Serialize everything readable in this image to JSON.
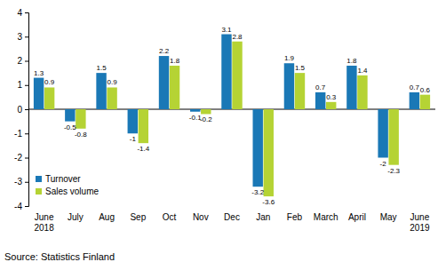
{
  "chart_data": {
    "type": "bar",
    "categories": [
      "June 2018",
      "July",
      "Aug",
      "Sep",
      "Oct",
      "Nov",
      "Dec",
      "Jan",
      "Feb",
      "March",
      "April",
      "May",
      "June 2019"
    ],
    "series": [
      {
        "name": "Turnover",
        "color": "#1a78b6",
        "values": [
          1.3,
          -0.5,
          1.5,
          -1.0,
          2.2,
          -0.1,
          3.1,
          -3.2,
          1.9,
          0.7,
          1.8,
          -2.0,
          0.7
        ]
      },
      {
        "name": "Sales volume",
        "color": "#b5d334",
        "values": [
          0.9,
          -0.8,
          0.9,
          -1.4,
          1.8,
          -0.2,
          2.8,
          -3.6,
          1.5,
          0.3,
          1.4,
          -2.3,
          0.6
        ]
      }
    ],
    "ylim": [
      -4,
      4
    ],
    "yticks": [
      -4,
      -3,
      -2,
      -1,
      0,
      1,
      2,
      3,
      4
    ],
    "grid": false,
    "legend": "lower left",
    "data_labels": true,
    "source": "Source: Statistics Finland"
  }
}
